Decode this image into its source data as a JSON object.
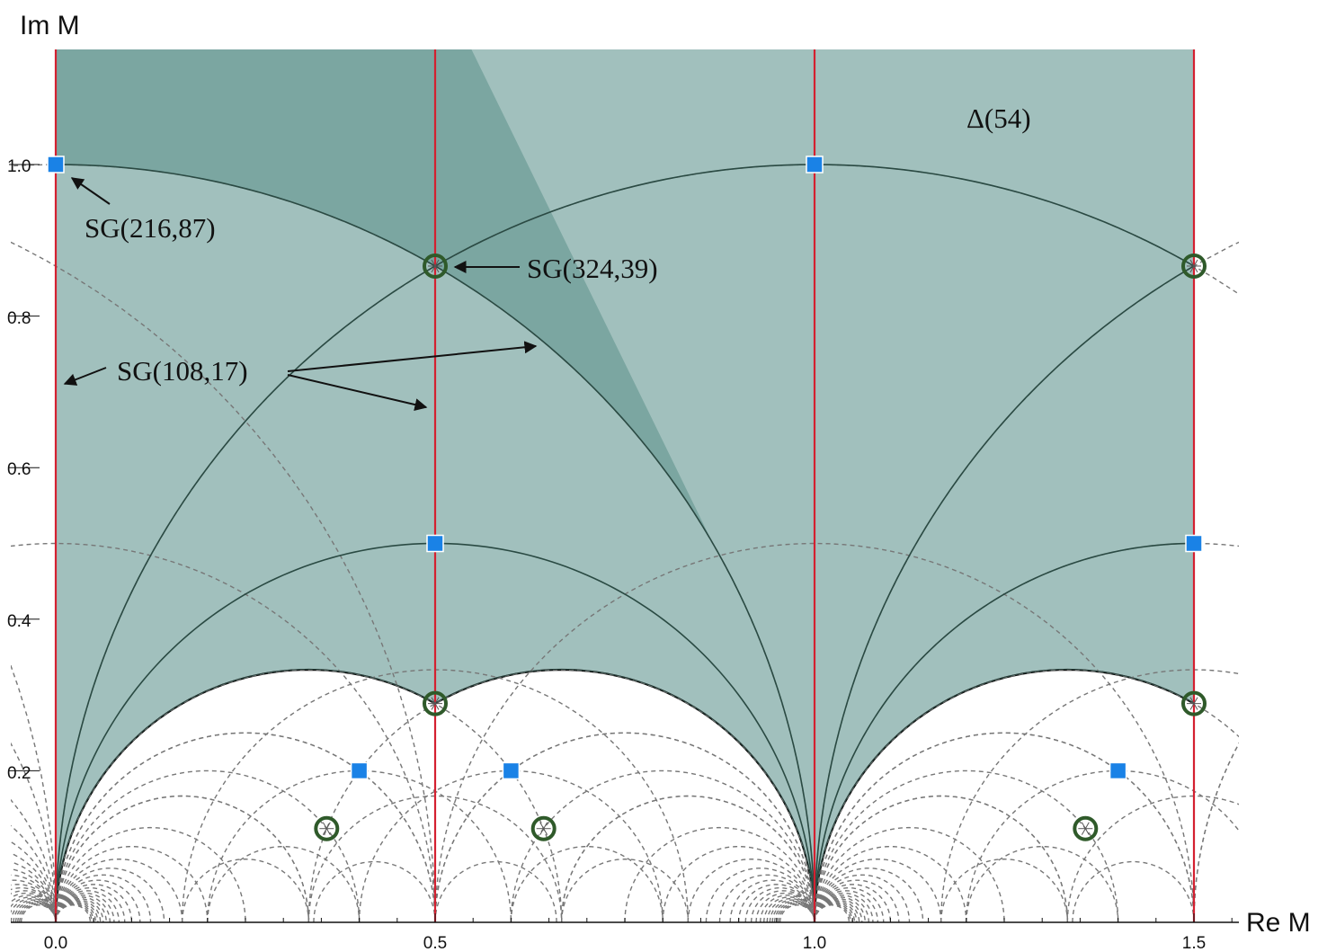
{
  "chart_data": {
    "type": "diagram",
    "xlabel": "Re M",
    "ylabel": "Im M",
    "xlim": [
      0.0,
      1.55
    ],
    "ylim": [
      0.0,
      1.15
    ],
    "x_ticks": [
      "0.0",
      "0.5",
      "1.0",
      "1.5"
    ],
    "y_ticks": [
      "0.2",
      "0.4",
      "0.6",
      "0.8",
      "1.0"
    ],
    "region_label": "Δ(54)",
    "colors": {
      "fundamental_domain": "#7ba6a1",
      "extended_domain": "#a1c0bd",
      "critical_line": "#d42030",
      "geodesic": "#2a4a43",
      "dashed_geodesic": "#777777",
      "square_marker": "#1a82e6",
      "circle_marker": "#2f5a2a"
    },
    "critical_lines_re": [
      0.0,
      0.5,
      1.0,
      1.5
    ],
    "square_points": [
      {
        "re": 0.0,
        "im": 1.0
      },
      {
        "re": 1.0,
        "im": 1.0
      },
      {
        "re": 0.5,
        "im": 0.5
      },
      {
        "re": 1.5,
        "im": 0.5
      },
      {
        "re": 0.4,
        "im": 0.2
      },
      {
        "re": 0.6,
        "im": 0.2
      },
      {
        "re": 1.4,
        "im": 0.2
      }
    ],
    "circle_points": [
      {
        "re": 0.5,
        "im": 0.866
      },
      {
        "re": 1.5,
        "im": 0.866
      },
      {
        "re": 0.5,
        "im": 0.2887
      },
      {
        "re": 1.5,
        "im": 0.2887
      },
      {
        "re": 0.357,
        "im": 0.1237
      },
      {
        "re": 0.643,
        "im": 0.1237
      },
      {
        "re": 1.357,
        "im": 0.1237
      }
    ],
    "annotations": [
      {
        "text": "SG(216,87)",
        "point": {
          "re": 0.0,
          "im": 1.0
        }
      },
      {
        "text": "SG(324,39)",
        "point": {
          "re": 0.5,
          "im": 0.866
        }
      },
      {
        "text": "SG(108,17)",
        "points": [
          {
            "re": 0.01,
            "im": 0.71
          },
          {
            "re": 0.63,
            "im": 0.76
          },
          {
            "re": 0.49,
            "im": 0.67
          }
        ]
      }
    ]
  }
}
